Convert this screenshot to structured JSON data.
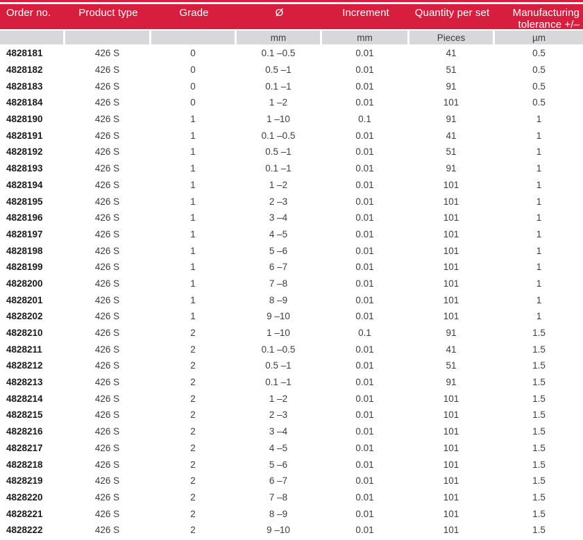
{
  "table": {
    "columns": [
      {
        "label": "Order no.",
        "unit": ""
      },
      {
        "label": "Product type",
        "unit": ""
      },
      {
        "label": "Grade",
        "unit": ""
      },
      {
        "label": "Ø",
        "unit": "mm"
      },
      {
        "label": "Increment",
        "unit": "mm"
      },
      {
        "label": "Quantity per set",
        "unit": "Pieces"
      },
      {
        "label": "Manufacturing tolerance +/–",
        "unit": "µm"
      }
    ],
    "rows": [
      {
        "order_no": "4828181",
        "product_type": "426 S",
        "grade": "0",
        "diameter": "0.1 –0.5",
        "increment": "0.01",
        "quantity": "41",
        "tolerance": "0.5"
      },
      {
        "order_no": "4828182",
        "product_type": "426 S",
        "grade": "0",
        "diameter": "0.5 –1",
        "increment": "0.01",
        "quantity": "51",
        "tolerance": "0.5"
      },
      {
        "order_no": "4828183",
        "product_type": "426 S",
        "grade": "0",
        "diameter": "0.1 –1",
        "increment": "0.01",
        "quantity": "91",
        "tolerance": "0.5"
      },
      {
        "order_no": "4828184",
        "product_type": "426 S",
        "grade": "0",
        "diameter": "1 –2",
        "increment": "0.01",
        "quantity": "101",
        "tolerance": "0.5"
      },
      {
        "order_no": "4828190",
        "product_type": "426 S",
        "grade": "1",
        "diameter": "1 –10",
        "increment": "0.1",
        "quantity": "91",
        "tolerance": "1"
      },
      {
        "order_no": "4828191",
        "product_type": "426 S",
        "grade": "1",
        "diameter": "0.1 –0.5",
        "increment": "0.01",
        "quantity": "41",
        "tolerance": "1"
      },
      {
        "order_no": "4828192",
        "product_type": "426 S",
        "grade": "1",
        "diameter": "0.5 –1",
        "increment": "0.01",
        "quantity": "51",
        "tolerance": "1"
      },
      {
        "order_no": "4828193",
        "product_type": "426 S",
        "grade": "1",
        "diameter": "0.1 –1",
        "increment": "0.01",
        "quantity": "91",
        "tolerance": "1"
      },
      {
        "order_no": "4828194",
        "product_type": "426 S",
        "grade": "1",
        "diameter": "1 –2",
        "increment": "0.01",
        "quantity": "101",
        "tolerance": "1"
      },
      {
        "order_no": "4828195",
        "product_type": "426 S",
        "grade": "1",
        "diameter": "2 –3",
        "increment": "0.01",
        "quantity": "101",
        "tolerance": "1"
      },
      {
        "order_no": "4828196",
        "product_type": "426 S",
        "grade": "1",
        "diameter": "3 –4",
        "increment": "0.01",
        "quantity": "101",
        "tolerance": "1"
      },
      {
        "order_no": "4828197",
        "product_type": "426 S",
        "grade": "1",
        "diameter": "4 –5",
        "increment": "0.01",
        "quantity": "101",
        "tolerance": "1"
      },
      {
        "order_no": "4828198",
        "product_type": "426 S",
        "grade": "1",
        "diameter": "5 –6",
        "increment": "0.01",
        "quantity": "101",
        "tolerance": "1"
      },
      {
        "order_no": "4828199",
        "product_type": "426 S",
        "grade": "1",
        "diameter": "6 –7",
        "increment": "0.01",
        "quantity": "101",
        "tolerance": "1"
      },
      {
        "order_no": "4828200",
        "product_type": "426 S",
        "grade": "1",
        "diameter": "7 –8",
        "increment": "0.01",
        "quantity": "101",
        "tolerance": "1"
      },
      {
        "order_no": "4828201",
        "product_type": "426 S",
        "grade": "1",
        "diameter": "8 –9",
        "increment": "0.01",
        "quantity": "101",
        "tolerance": "1"
      },
      {
        "order_no": "4828202",
        "product_type": "426 S",
        "grade": "1",
        "diameter": "9 –10",
        "increment": "0.01",
        "quantity": "101",
        "tolerance": "1"
      },
      {
        "order_no": "4828210",
        "product_type": "426 S",
        "grade": "2",
        "diameter": "1 –10",
        "increment": "0.1",
        "quantity": "91",
        "tolerance": "1.5"
      },
      {
        "order_no": "4828211",
        "product_type": "426 S",
        "grade": "2",
        "diameter": "0.1 –0.5",
        "increment": "0.01",
        "quantity": "41",
        "tolerance": "1.5"
      },
      {
        "order_no": "4828212",
        "product_type": "426 S",
        "grade": "2",
        "diameter": "0.5 –1",
        "increment": "0.01",
        "quantity": "51",
        "tolerance": "1.5"
      },
      {
        "order_no": "4828213",
        "product_type": "426 S",
        "grade": "2",
        "diameter": "0.1 –1",
        "increment": "0.01",
        "quantity": "91",
        "tolerance": "1.5"
      },
      {
        "order_no": "4828214",
        "product_type": "426 S",
        "grade": "2",
        "diameter": "1 –2",
        "increment": "0.01",
        "quantity": "101",
        "tolerance": "1.5"
      },
      {
        "order_no": "4828215",
        "product_type": "426 S",
        "grade": "2",
        "diameter": "2 –3",
        "increment": "0.01",
        "quantity": "101",
        "tolerance": "1.5"
      },
      {
        "order_no": "4828216",
        "product_type": "426 S",
        "grade": "2",
        "diameter": "3 –4",
        "increment": "0.01",
        "quantity": "101",
        "tolerance": "1.5"
      },
      {
        "order_no": "4828217",
        "product_type": "426 S",
        "grade": "2",
        "diameter": "4 –5",
        "increment": "0.01",
        "quantity": "101",
        "tolerance": "1.5"
      },
      {
        "order_no": "4828218",
        "product_type": "426 S",
        "grade": "2",
        "diameter": "5 –6",
        "increment": "0.01",
        "quantity": "101",
        "tolerance": "1.5"
      },
      {
        "order_no": "4828219",
        "product_type": "426 S",
        "grade": "2",
        "diameter": "6 –7",
        "increment": "0.01",
        "quantity": "101",
        "tolerance": "1.5"
      },
      {
        "order_no": "4828220",
        "product_type": "426 S",
        "grade": "2",
        "diameter": "7 –8",
        "increment": "0.01",
        "quantity": "101",
        "tolerance": "1.5"
      },
      {
        "order_no": "4828221",
        "product_type": "426 S",
        "grade": "2",
        "diameter": "8 –9",
        "increment": "0.01",
        "quantity": "101",
        "tolerance": "1.5"
      },
      {
        "order_no": "4828222",
        "product_type": "426 S",
        "grade": "2",
        "diameter": "9 –10",
        "increment": "0.01",
        "quantity": "101",
        "tolerance": "1.5"
      }
    ]
  },
  "colors": {
    "header_red": "#d81e3e",
    "row_light": "#f0f0f1",
    "row_dark": "#d8d8da",
    "text_dark": "#3c3c3c",
    "order_no_text": "#1b1b1b",
    "header_text": "#ffffff"
  }
}
